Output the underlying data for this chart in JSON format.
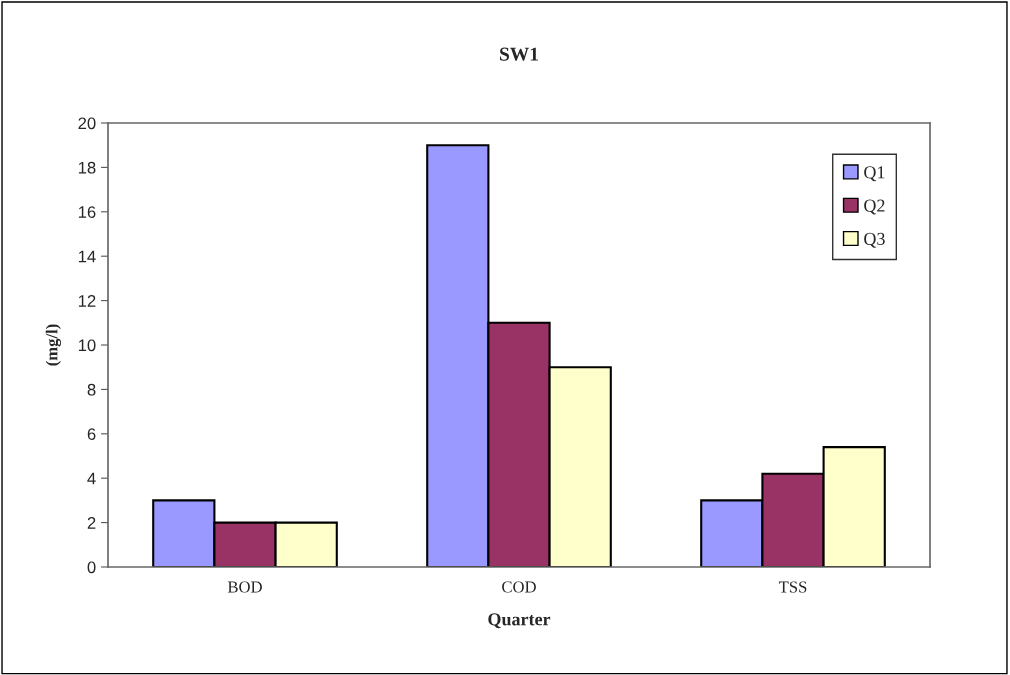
{
  "chart_data": {
    "type": "bar",
    "title": "SW1",
    "xlabel": "Quarter",
    "ylabel": "(mg/l)",
    "categories": [
      "BOD",
      "COD",
      "TSS"
    ],
    "series": [
      {
        "name": "Q1",
        "color": "#9999ff",
        "values": [
          3,
          19,
          3
        ]
      },
      {
        "name": "Q2",
        "color": "#993366",
        "values": [
          2,
          11,
          4.2
        ]
      },
      {
        "name": "Q3",
        "color": "#ffffcc",
        "values": [
          2,
          9,
          5.4
        ]
      }
    ],
    "ylim": [
      0,
      20
    ],
    "yticks": [
      0,
      2,
      4,
      6,
      8,
      10,
      12,
      14,
      16,
      18,
      20
    ],
    "grid": false,
    "legend": "top right"
  }
}
